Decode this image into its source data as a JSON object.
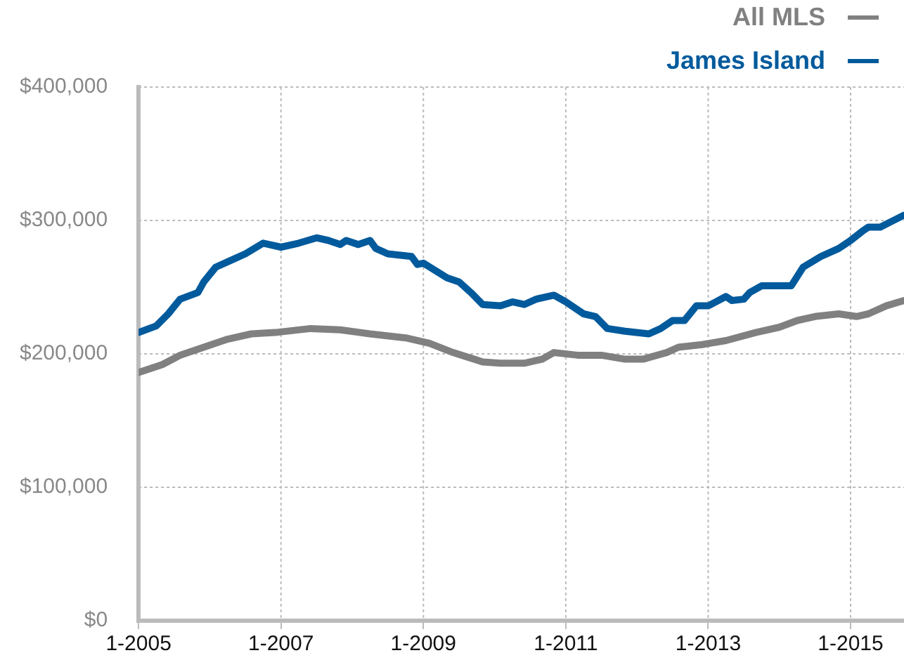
{
  "chart_data": {
    "type": "line",
    "legend": "top right",
    "grid": true,
    "marker": "none",
    "line_style": "solid",
    "xlim": [
      "2005-01",
      "2015-10"
    ],
    "xticks": [
      {
        "value": "2005-01",
        "label": "1-2005"
      },
      {
        "value": "2007-01",
        "label": "1-2007"
      },
      {
        "value": "2009-01",
        "label": "1-2009"
      },
      {
        "value": "2011-01",
        "label": "1-2011"
      },
      {
        "value": "2013-01",
        "label": "1-2013"
      },
      {
        "value": "2015-01",
        "label": "1-2015"
      }
    ],
    "ylim": [
      0,
      400000
    ],
    "yticks": [
      {
        "value": 0,
        "label": "$0"
      },
      {
        "value": 100000,
        "label": "$100,000"
      },
      {
        "value": 200000,
        "label": "$200,000"
      },
      {
        "value": 300000,
        "label": "$300,000"
      },
      {
        "value": 400000,
        "label": "$400,000"
      }
    ],
    "series": [
      {
        "name": "All MLS",
        "color": "#808080",
        "x": [
          "2005-01",
          "2005-05",
          "2005-08",
          "2005-12",
          "2006-04",
          "2006-08",
          "2006-12",
          "2007-06",
          "2007-11",
          "2008-04",
          "2008-10",
          "2009-02",
          "2009-06",
          "2009-11",
          "2010-02",
          "2010-06",
          "2010-09",
          "2010-11",
          "2011-03",
          "2011-07",
          "2011-11",
          "2012-02",
          "2012-06",
          "2012-08",
          "2012-12",
          "2013-04",
          "2013-09",
          "2014-01",
          "2014-04",
          "2014-07",
          "2014-11",
          "2015-02",
          "2015-04",
          "2015-07",
          "2015-10"
        ],
        "values": [
          186000,
          192000,
          199000,
          205000,
          211000,
          215000,
          216000,
          219000,
          218000,
          215000,
          212000,
          208000,
          201000,
          194000,
          193000,
          193000,
          196000,
          201000,
          199000,
          199000,
          196000,
          196000,
          201000,
          205000,
          207000,
          210000,
          216000,
          220000,
          225000,
          228000,
          230000,
          228000,
          230000,
          236000,
          240000
        ]
      },
      {
        "name": "James Island",
        "color": "#005a9c",
        "x": [
          "2005-01",
          "2005-04",
          "2005-06",
          "2005-08",
          "2005-11",
          "2005-12",
          "2006-02",
          "2006-05",
          "2006-07",
          "2006-10",
          "2007-01",
          "2007-04",
          "2007-07",
          "2007-09",
          "2007-11",
          "2007-12",
          "2008-02",
          "2008-04",
          "2008-05",
          "2008-07",
          "2008-11",
          "2008-12",
          "2009-01",
          "2009-05",
          "2009-07",
          "2009-09",
          "2009-11",
          "2010-02",
          "2010-04",
          "2010-06",
          "2010-08",
          "2010-11",
          "2011-01",
          "2011-04",
          "2011-06",
          "2011-08",
          "2011-11",
          "2012-03",
          "2012-05",
          "2012-07",
          "2012-09",
          "2012-11",
          "2013-01",
          "2013-04",
          "2013-05",
          "2013-07",
          "2013-08",
          "2013-10",
          "2014-03",
          "2014-05",
          "2014-08",
          "2014-11",
          "2015-01",
          "2015-03",
          "2015-04",
          "2015-06",
          "2015-10"
        ],
        "values": [
          216000,
          221000,
          230000,
          241000,
          246000,
          254000,
          265000,
          271000,
          275000,
          283000,
          280000,
          283000,
          287000,
          285000,
          282000,
          285000,
          282000,
          285000,
          279000,
          275000,
          273000,
          267000,
          268000,
          257000,
          254000,
          246000,
          237000,
          236000,
          239000,
          237000,
          241000,
          244000,
          239000,
          230000,
          228000,
          219000,
          217000,
          215000,
          219000,
          225000,
          225000,
          236000,
          236000,
          243000,
          240000,
          241000,
          246000,
          251000,
          251000,
          265000,
          273000,
          279000,
          285000,
          292000,
          295000,
          295000,
          304000
        ]
      }
    ]
  }
}
